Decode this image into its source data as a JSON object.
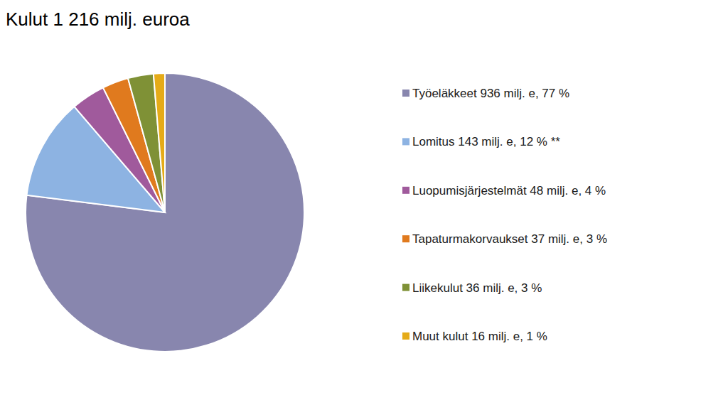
{
  "chart_data": {
    "type": "pie",
    "title": "Kulut 1 216 milj. euroa",
    "categories": [
      "Työeläkkeet 936 milj. e, 77 %",
      "Lomitus 143 milj. e, 12 % **",
      "Luopumisjärjestelmät 48 milj. e, 4 %",
      "Tapaturmakorvaukset 37 milj. e, 3 %",
      "Liikekulut 36 milj. e, 3 %",
      "Muut kulut 16 milj. e, 1 %"
    ],
    "values": [
      936,
      143,
      48,
      37,
      36,
      16
    ],
    "colors": [
      "#8886ae",
      "#8db3e2",
      "#a05a9c",
      "#e07a1e",
      "#7f9136",
      "#e5ab18"
    ],
    "legend": "right"
  }
}
